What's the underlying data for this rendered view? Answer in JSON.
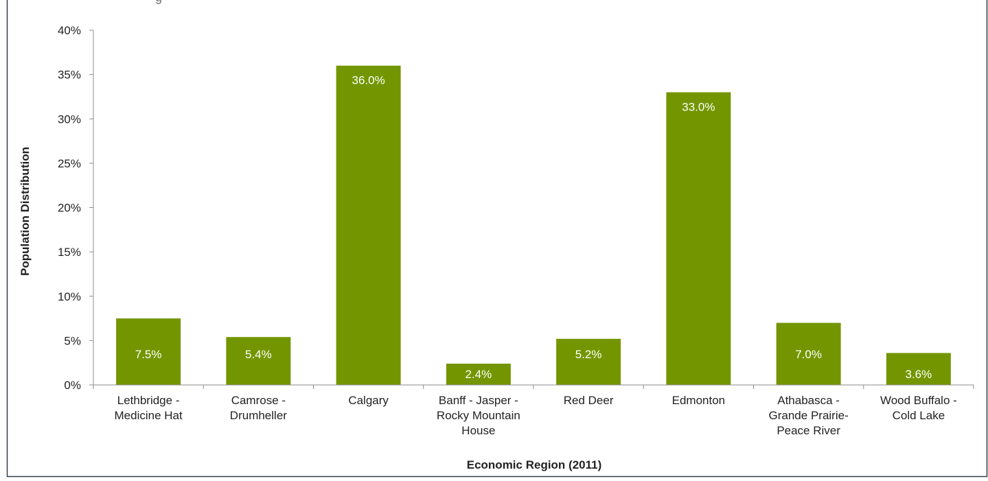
{
  "chart_data": {
    "type": "bar",
    "categories": [
      [
        "Lethbridge -",
        "Medicine Hat"
      ],
      [
        "Camrose -",
        "Drumheller"
      ],
      [
        "Calgary"
      ],
      [
        "Banff - Jasper -",
        "Rocky Mountain",
        "House"
      ],
      [
        "Red Deer"
      ],
      [
        "Edmonton"
      ],
      [
        "Athabasca -",
        "Grande Prairie-",
        "Peace River"
      ],
      [
        "Wood Buffalo -",
        "Cold Lake"
      ]
    ],
    "values": [
      7.5,
      5.4,
      36.0,
      2.4,
      5.2,
      33.0,
      7.0,
      3.6
    ],
    "data_labels": [
      "7.5%",
      "5.4%",
      "36.0%",
      "2.4%",
      "5.2%",
      "33.0%",
      "7.0%",
      "3.6%"
    ],
    "ylim": [
      0,
      40
    ],
    "yticks": [
      0,
      5,
      10,
      15,
      20,
      25,
      30,
      35,
      40
    ],
    "ytick_labels": [
      "0%",
      "5%",
      "10%",
      "15%",
      "20%",
      "25%",
      "30%",
      "35%",
      "40%"
    ],
    "xlabel": "Economic Region (2011)",
    "ylabel": "Population Distribution",
    "grid": false,
    "legend": "none",
    "bar_color": "#739600",
    "label_color": "#ffffff"
  }
}
